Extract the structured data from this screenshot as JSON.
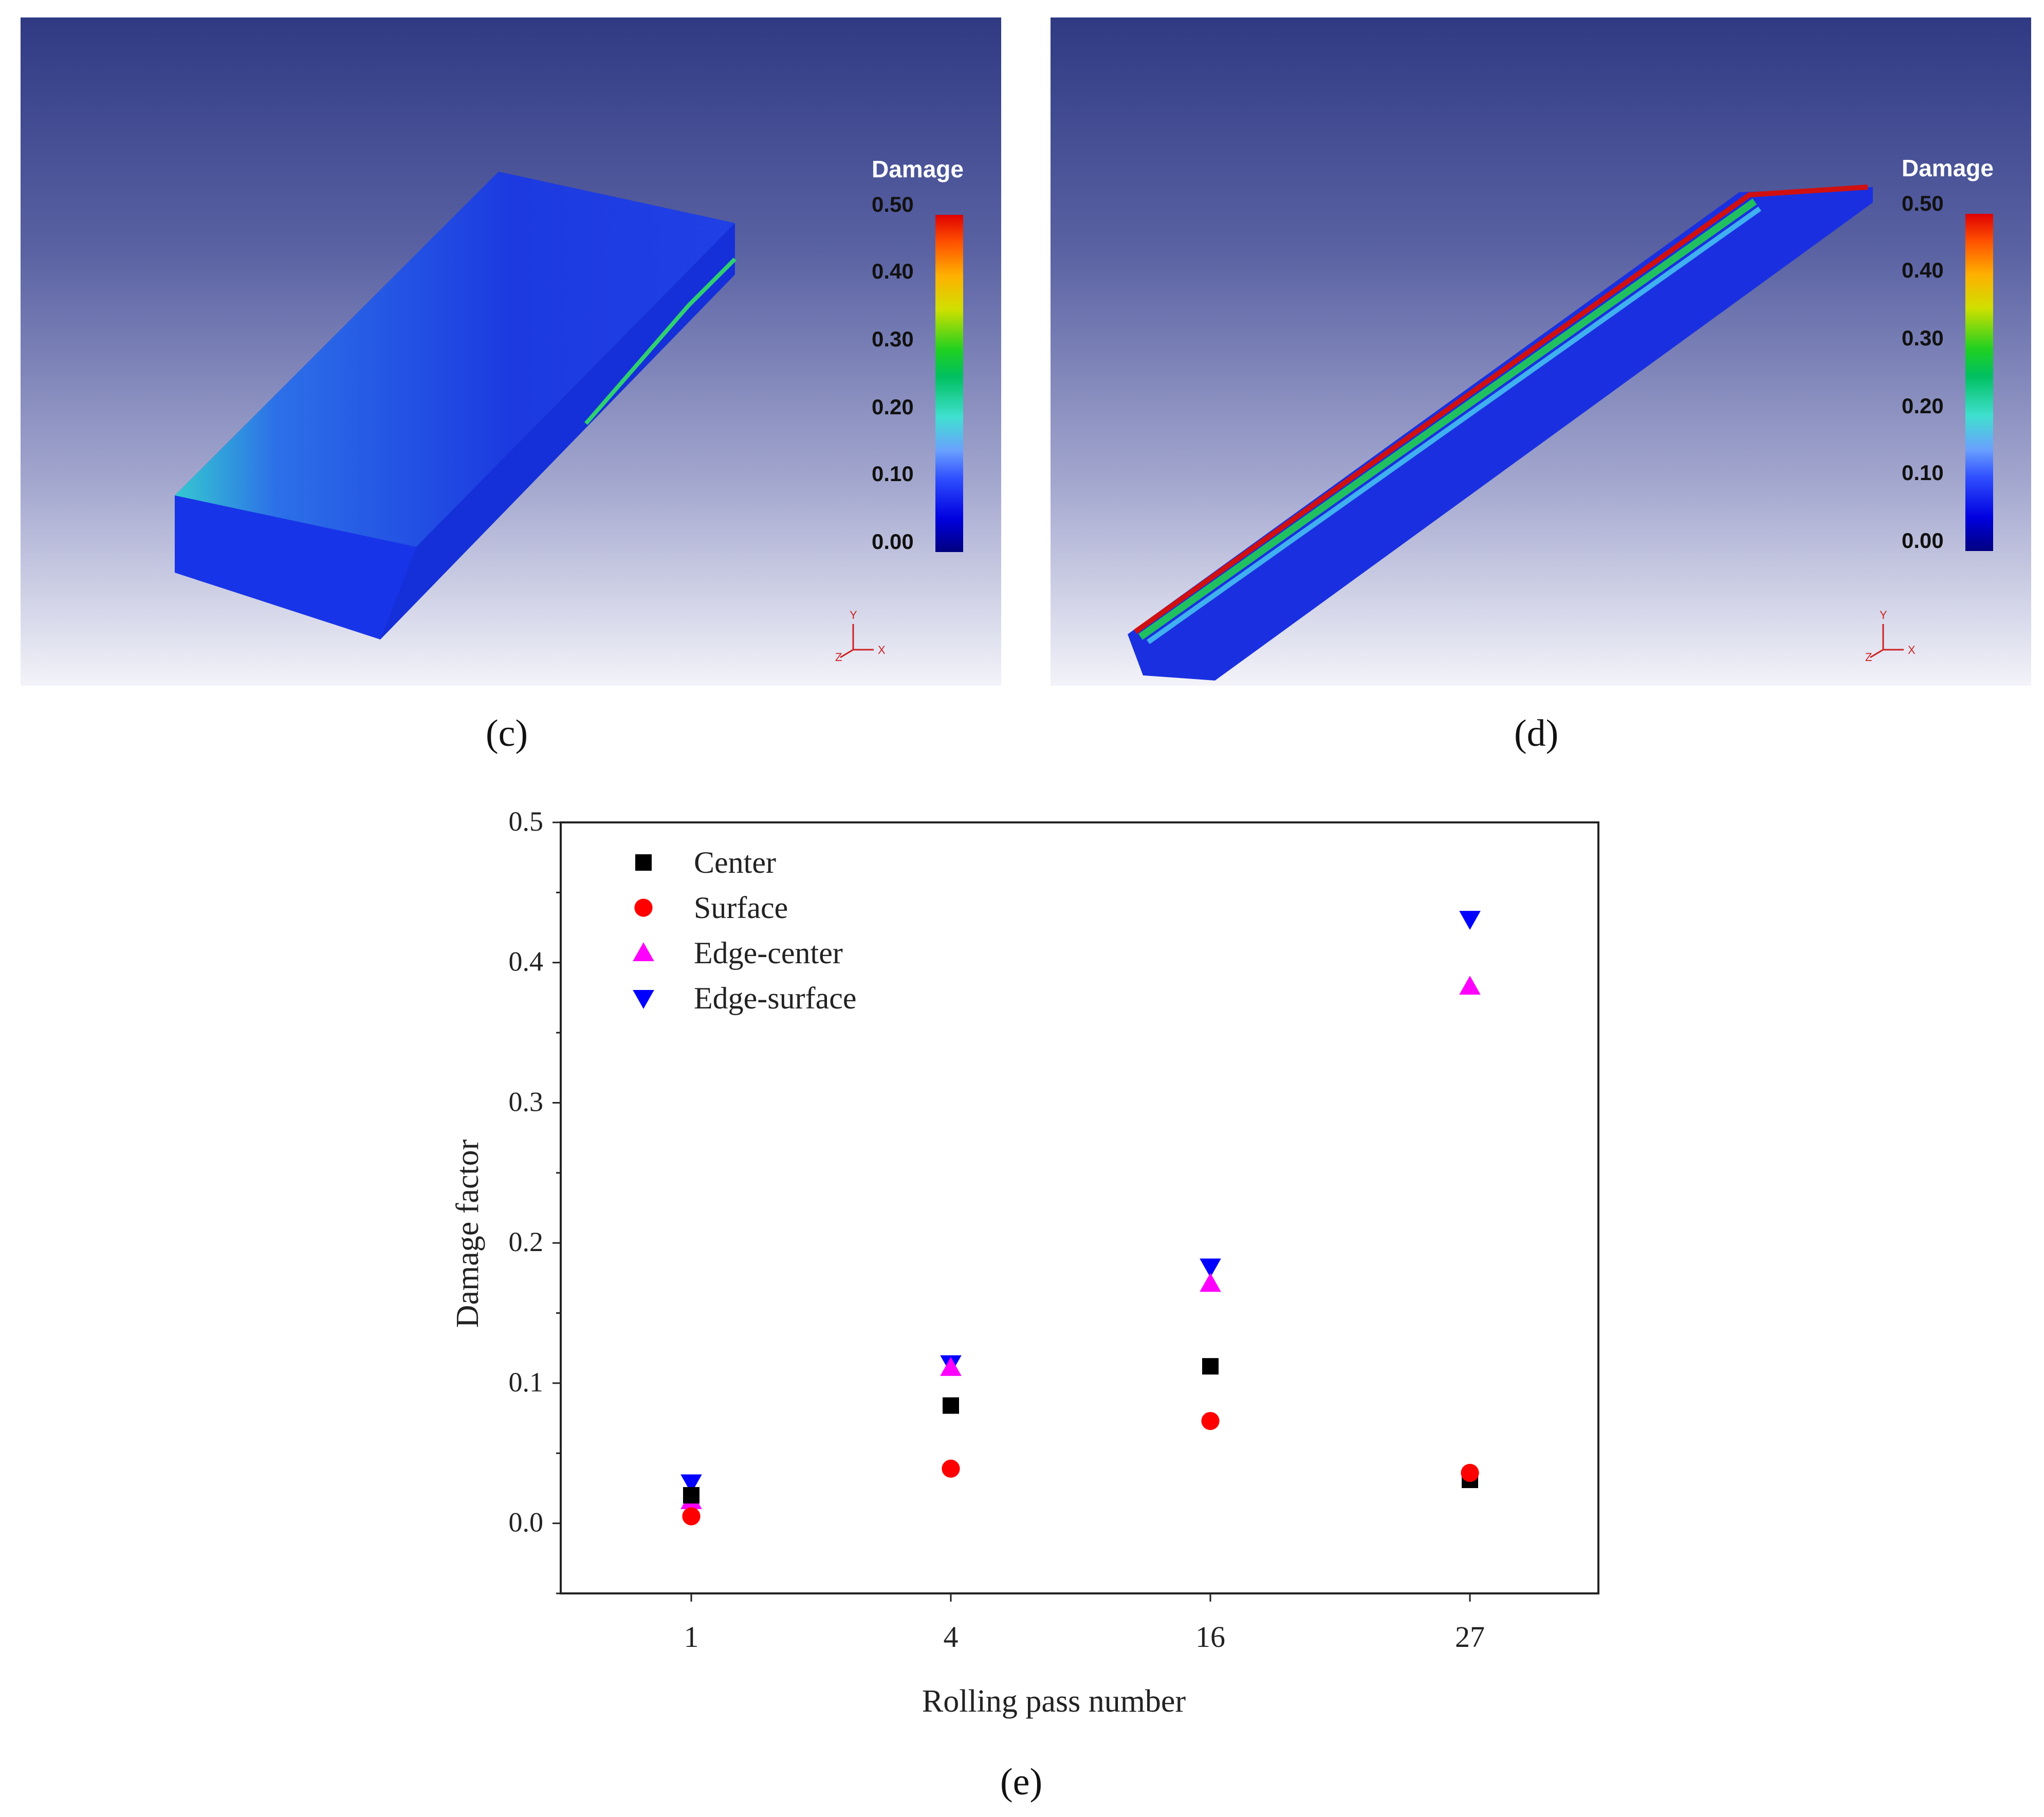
{
  "panels": {
    "c": {
      "caption": "(c)",
      "colorbar": {
        "title": "Damage",
        "ticks": [
          "0.50",
          "0.40",
          "0.30",
          "0.20",
          "0.10",
          "0.00"
        ]
      },
      "axes_triad": {
        "y": "Y",
        "z": "Z",
        "x": "X"
      }
    },
    "d": {
      "caption": "(d)",
      "colorbar": {
        "title": "Damage",
        "ticks": [
          "0.50",
          "0.40",
          "0.30",
          "0.20",
          "0.10",
          "0.00"
        ]
      },
      "axes_triad": {
        "y": "Y",
        "z": "Z",
        "x": "X"
      }
    },
    "e": {
      "caption": "(e)"
    }
  },
  "chart_data": {
    "type": "scatter",
    "xlabel": "Rolling pass number",
    "ylabel": "Damage factor",
    "categories": [
      "1",
      "4",
      "16",
      "27"
    ],
    "ylim": [
      -0.05,
      0.5
    ],
    "yticks": [
      "0.0",
      "0.1",
      "0.2",
      "0.3",
      "0.4",
      "0.5"
    ],
    "legend_position": "top-left",
    "grid": false,
    "series": [
      {
        "name": "Center",
        "marker": "square",
        "color": "#000000",
        "values": [
          0.02,
          0.084,
          0.112,
          0.031
        ]
      },
      {
        "name": "Surface",
        "marker": "circle",
        "color": "#ff0000",
        "values": [
          0.005,
          0.039,
          0.073,
          0.036
        ]
      },
      {
        "name": "Edge-center",
        "marker": "triangle-up",
        "color": "#ff00ff",
        "values": [
          0.016,
          0.111,
          0.171,
          0.383
        ]
      },
      {
        "name": "Edge-surface",
        "marker": "triangle-down",
        "color": "#0000ff",
        "values": [
          0.029,
          0.114,
          0.183,
          0.431
        ]
      }
    ]
  }
}
